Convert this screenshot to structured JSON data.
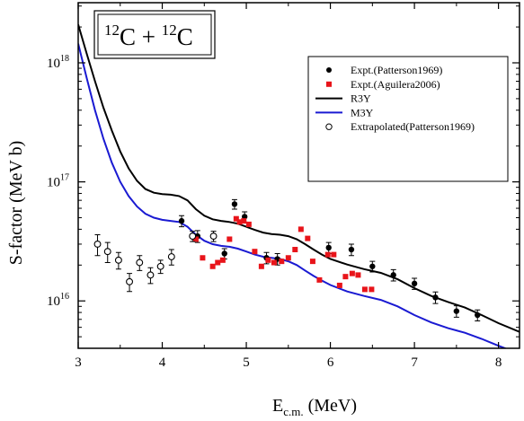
{
  "chart_data": {
    "type": "scatter",
    "title": "C + C",
    "title_parts": {
      "mass_a": "12",
      "sym_a": "C",
      "plus": " + ",
      "mass_b": "12",
      "sym_b": "C"
    },
    "xlabel": {
      "main": "E",
      "sub": "c.m.",
      "unit": " (MeV)"
    },
    "ylabel": "S-factor (MeV b)",
    "xlim": [
      3,
      8.25
    ],
    "ylim": [
      4000000000000000.0,
      3.2e+18
    ],
    "yscale": "log",
    "x_ticks": [
      3,
      4,
      5,
      6,
      7,
      8
    ],
    "y_ticks": [
      {
        "value": 1e+16,
        "base": "10",
        "exp": "16"
      },
      {
        "value": 1e+17,
        "base": "10",
        "exp": "17"
      },
      {
        "value": 1e+18,
        "base": "10",
        "exp": "18"
      }
    ],
    "grid": false,
    "legend_position": "top-right",
    "series": [
      {
        "name": "Expt.(Patterson1969)",
        "kind": "scatter",
        "marker": "filled-circle",
        "color": "#000000",
        "points": [
          {
            "x": 4.23,
            "y": 4.7e+16,
            "err": 5000000000000000.0
          },
          {
            "x": 4.42,
            "y": 3.5e+16,
            "err": 4000000000000000.0
          },
          {
            "x": 4.74,
            "y": 2.5e+16,
            "err": 2500000000000000.0
          },
          {
            "x": 4.86,
            "y": 6.5e+16,
            "err": 6000000000000000.0
          },
          {
            "x": 4.98,
            "y": 5.1e+16,
            "err": 5000000000000000.0
          },
          {
            "x": 5.24,
            "y": 2.3e+16,
            "err": 2500000000000000.0
          },
          {
            "x": 5.37,
            "y": 2.25e+16,
            "err": 2500000000000000.0
          },
          {
            "x": 5.98,
            "y": 2.8e+16,
            "err": 3000000000000000.0
          },
          {
            "x": 6.25,
            "y": 2.7e+16,
            "err": 3000000000000000.0
          },
          {
            "x": 6.5,
            "y": 1.95e+16,
            "err": 2000000000000000.0
          },
          {
            "x": 6.75,
            "y": 1.65e+16,
            "err": 1800000000000000.0
          },
          {
            "x": 7.0,
            "y": 1.4e+16,
            "err": 1500000000000000.0
          },
          {
            "x": 7.25,
            "y": 1.07e+16,
            "err": 1200000000000000.0
          },
          {
            "x": 7.5,
            "y": 8200000000000000.0,
            "err": 900000000000000.0
          },
          {
            "x": 7.75,
            "y": 7600000000000000.0,
            "err": 800000000000000.0
          }
        ]
      },
      {
        "name": "Expt.(Aguilera2006)",
        "kind": "scatter",
        "marker": "filled-square",
        "color": "#e8141a",
        "points": [
          {
            "x": 4.4,
            "y": 3.3e+16
          },
          {
            "x": 4.48,
            "y": 2.3e+16
          },
          {
            "x": 4.6,
            "y": 1.95e+16
          },
          {
            "x": 4.66,
            "y": 2.1e+16
          },
          {
            "x": 4.72,
            "y": 2.2e+16
          },
          {
            "x": 4.8,
            "y": 3.3e+16
          },
          {
            "x": 4.88,
            "y": 4.9e+16
          },
          {
            "x": 4.92,
            "y": 4.6e+16
          },
          {
            "x": 4.97,
            "y": 4.7e+16
          },
          {
            "x": 5.03,
            "y": 4.4e+16
          },
          {
            "x": 5.1,
            "y": 2.6e+16
          },
          {
            "x": 5.18,
            "y": 1.95e+16
          },
          {
            "x": 5.26,
            "y": 2.2e+16
          },
          {
            "x": 5.33,
            "y": 2.1e+16
          },
          {
            "x": 5.42,
            "y": 2.15e+16
          },
          {
            "x": 5.5,
            "y": 2.3e+16
          },
          {
            "x": 5.58,
            "y": 2.7e+16
          },
          {
            "x": 5.65,
            "y": 4e+16
          },
          {
            "x": 5.73,
            "y": 3.35e+16
          },
          {
            "x": 5.79,
            "y": 2.15e+16
          },
          {
            "x": 5.87,
            "y": 1.5e+16
          },
          {
            "x": 5.97,
            "y": 2.45e+16
          },
          {
            "x": 6.04,
            "y": 2.45e+16
          },
          {
            "x": 6.11,
            "y": 1.35e+16
          },
          {
            "x": 6.18,
            "y": 1.6e+16
          },
          {
            "x": 6.26,
            "y": 1.7e+16
          },
          {
            "x": 6.33,
            "y": 1.65e+16
          },
          {
            "x": 6.41,
            "y": 1.25e+16
          },
          {
            "x": 6.49,
            "y": 1.25e+16
          }
        ]
      },
      {
        "name": "R3Y",
        "kind": "line",
        "color": "#000000",
        "points": [
          {
            "x": 3.0,
            "y": 2.1e+18
          },
          {
            "x": 3.1,
            "y": 1.2e+18
          },
          {
            "x": 3.2,
            "y": 7e+17
          },
          {
            "x": 3.3,
            "y": 4.2e+17
          },
          {
            "x": 3.4,
            "y": 2.7e+17
          },
          {
            "x": 3.5,
            "y": 1.8e+17
          },
          {
            "x": 3.6,
            "y": 1.3e+17
          },
          {
            "x": 3.7,
            "y": 1.02e+17
          },
          {
            "x": 3.8,
            "y": 8.7e+16
          },
          {
            "x": 3.9,
            "y": 8.1e+16
          },
          {
            "x": 4.0,
            "y": 7.9e+16
          },
          {
            "x": 4.1,
            "y": 7.8e+16
          },
          {
            "x": 4.2,
            "y": 7.6e+16
          },
          {
            "x": 4.3,
            "y": 7e+16
          },
          {
            "x": 4.4,
            "y": 5.9e+16
          },
          {
            "x": 4.5,
            "y": 5.2e+16
          },
          {
            "x": 4.6,
            "y": 4.85e+16
          },
          {
            "x": 4.7,
            "y": 4.7e+16
          },
          {
            "x": 4.8,
            "y": 4.6e+16
          },
          {
            "x": 4.9,
            "y": 4.45e+16
          },
          {
            "x": 5.0,
            "y": 4.2e+16
          },
          {
            "x": 5.1,
            "y": 3.95e+16
          },
          {
            "x": 5.2,
            "y": 3.75e+16
          },
          {
            "x": 5.3,
            "y": 3.65e+16
          },
          {
            "x": 5.4,
            "y": 3.6e+16
          },
          {
            "x": 5.5,
            "y": 3.5e+16
          },
          {
            "x": 5.6,
            "y": 3.3e+16
          },
          {
            "x": 5.7,
            "y": 3e+16
          },
          {
            "x": 5.8,
            "y": 2.7e+16
          },
          {
            "x": 5.9,
            "y": 2.45e+16
          },
          {
            "x": 6.0,
            "y": 2.25e+16
          },
          {
            "x": 6.2,
            "y": 2.02e+16
          },
          {
            "x": 6.4,
            "y": 1.85e+16
          },
          {
            "x": 6.6,
            "y": 1.72e+16
          },
          {
            "x": 6.8,
            "y": 1.52e+16
          },
          {
            "x": 7.0,
            "y": 1.28e+16
          },
          {
            "x": 7.2,
            "y": 1.1e+16
          },
          {
            "x": 7.4,
            "y": 9800000000000000.0
          },
          {
            "x": 7.6,
            "y": 8800000000000000.0
          },
          {
            "x": 7.8,
            "y": 7600000000000000.0
          },
          {
            "x": 8.0,
            "y": 6500000000000000.0
          },
          {
            "x": 8.25,
            "y": 5500000000000000.0
          }
        ]
      },
      {
        "name": "M3Y",
        "kind": "line",
        "color": "#1a1ad2",
        "points": [
          {
            "x": 3.0,
            "y": 1.45e+18
          },
          {
            "x": 3.1,
            "y": 7.5e+17
          },
          {
            "x": 3.2,
            "y": 4e+17
          },
          {
            "x": 3.3,
            "y": 2.3e+17
          },
          {
            "x": 3.4,
            "y": 1.45e+17
          },
          {
            "x": 3.5,
            "y": 1e+17
          },
          {
            "x": 3.6,
            "y": 7.6e+16
          },
          {
            "x": 3.7,
            "y": 6.2e+16
          },
          {
            "x": 3.8,
            "y": 5.4e+16
          },
          {
            "x": 3.9,
            "y": 5e+16
          },
          {
            "x": 4.0,
            "y": 4.8e+16
          },
          {
            "x": 4.1,
            "y": 4.7e+16
          },
          {
            "x": 4.2,
            "y": 4.6e+16
          },
          {
            "x": 4.3,
            "y": 4.2e+16
          },
          {
            "x": 4.4,
            "y": 3.6e+16
          },
          {
            "x": 4.5,
            "y": 3.2e+16
          },
          {
            "x": 4.6,
            "y": 3e+16
          },
          {
            "x": 4.7,
            "y": 2.9e+16
          },
          {
            "x": 4.8,
            "y": 2.85e+16
          },
          {
            "x": 4.9,
            "y": 2.75e+16
          },
          {
            "x": 5.0,
            "y": 2.6e+16
          },
          {
            "x": 5.1,
            "y": 2.45e+16
          },
          {
            "x": 5.2,
            "y": 2.35e+16
          },
          {
            "x": 5.3,
            "y": 2.3e+16
          },
          {
            "x": 5.4,
            "y": 2.25e+16
          },
          {
            "x": 5.5,
            "y": 2.15e+16
          },
          {
            "x": 5.6,
            "y": 2e+16
          },
          {
            "x": 5.7,
            "y": 1.8e+16
          },
          {
            "x": 5.8,
            "y": 1.62e+16
          },
          {
            "x": 5.9,
            "y": 1.48e+16
          },
          {
            "x": 6.0,
            "y": 1.36e+16
          },
          {
            "x": 6.2,
            "y": 1.2e+16
          },
          {
            "x": 6.4,
            "y": 1.1e+16
          },
          {
            "x": 6.6,
            "y": 1.02e+16
          },
          {
            "x": 6.8,
            "y": 9000000000000000.0
          },
          {
            "x": 7.0,
            "y": 7600000000000000.0
          },
          {
            "x": 7.2,
            "y": 6600000000000000.0
          },
          {
            "x": 7.4,
            "y": 5900000000000000.0
          },
          {
            "x": 7.6,
            "y": 5400000000000000.0
          },
          {
            "x": 7.8,
            "y": 4800000000000000.0
          },
          {
            "x": 8.0,
            "y": 4200000000000000.0
          },
          {
            "x": 8.25,
            "y": 3600000000000000.0
          }
        ]
      },
      {
        "name": "Extrapolated(Patterson1969)",
        "kind": "scatter",
        "marker": "open-circle",
        "color": "#000000",
        "points": [
          {
            "x": 3.23,
            "y": 3e+16,
            "err": 6000000000000000.0
          },
          {
            "x": 3.35,
            "y": 2.6e+16,
            "err": 5000000000000000.0
          },
          {
            "x": 3.48,
            "y": 2.2e+16,
            "err": 3500000000000000.0
          },
          {
            "x": 3.61,
            "y": 1.45e+16,
            "err": 2500000000000000.0
          },
          {
            "x": 3.73,
            "y": 2.1e+16,
            "err": 3000000000000000.0
          },
          {
            "x": 3.86,
            "y": 1.65e+16,
            "err": 2500000000000000.0
          },
          {
            "x": 3.98,
            "y": 1.95e+16,
            "err": 2500000000000000.0
          },
          {
            "x": 4.11,
            "y": 2.35e+16,
            "err": 3500000000000000.0
          },
          {
            "x": 4.36,
            "y": 3.5e+16,
            "err": 3500000000000000.0
          },
          {
            "x": 4.61,
            "y": 3.5e+16,
            "err": 3500000000000000.0
          }
        ]
      }
    ]
  }
}
